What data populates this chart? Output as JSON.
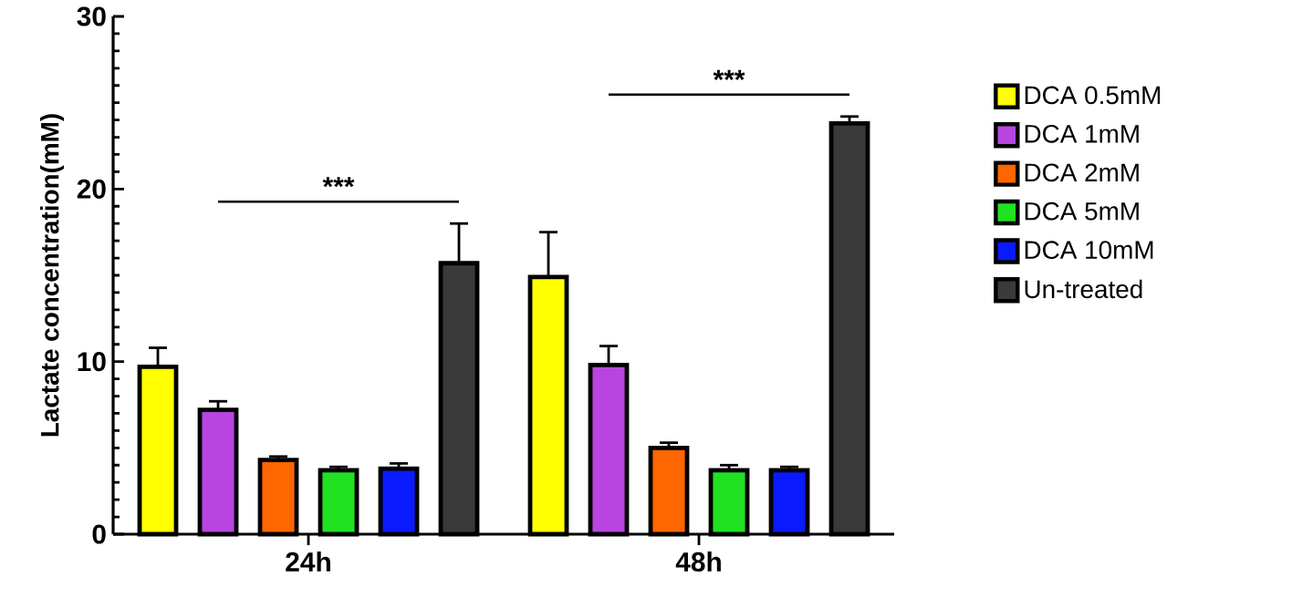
{
  "chart_data": {
    "type": "bar",
    "ylabel": "Lactate concentration(mM)",
    "categories": [
      "24h",
      "48h"
    ],
    "series": [
      {
        "name": "DCA 0.5mM",
        "color": "#ffff00",
        "values": [
          9.7,
          14.9
        ],
        "errors": [
          1.1,
          2.6
        ]
      },
      {
        "name": "DCA 1mM",
        "color": "#b845e0",
        "values": [
          7.2,
          9.8
        ],
        "errors": [
          0.5,
          1.1
        ]
      },
      {
        "name": "DCA 2mM",
        "color": "#ff6600",
        "values": [
          4.3,
          5.0
        ],
        "errors": [
          0.2,
          0.3
        ]
      },
      {
        "name": "DCA 5mM",
        "color": "#22e022",
        "values": [
          3.7,
          3.7
        ],
        "errors": [
          0.2,
          0.3
        ]
      },
      {
        "name": "DCA 10mM",
        "color": "#0a1aff",
        "values": [
          3.8,
          3.7
        ],
        "errors": [
          0.3,
          0.2
        ]
      },
      {
        "name": "Un-treated",
        "color": "#3a3a3a",
        "values": [
          15.7,
          23.8
        ],
        "errors": [
          2.3,
          0.4
        ]
      }
    ],
    "ylim": [
      0,
      30
    ],
    "yticks": [
      0,
      10,
      20,
      30
    ],
    "legend": "right",
    "annotations": [
      "***",
      "***"
    ]
  }
}
